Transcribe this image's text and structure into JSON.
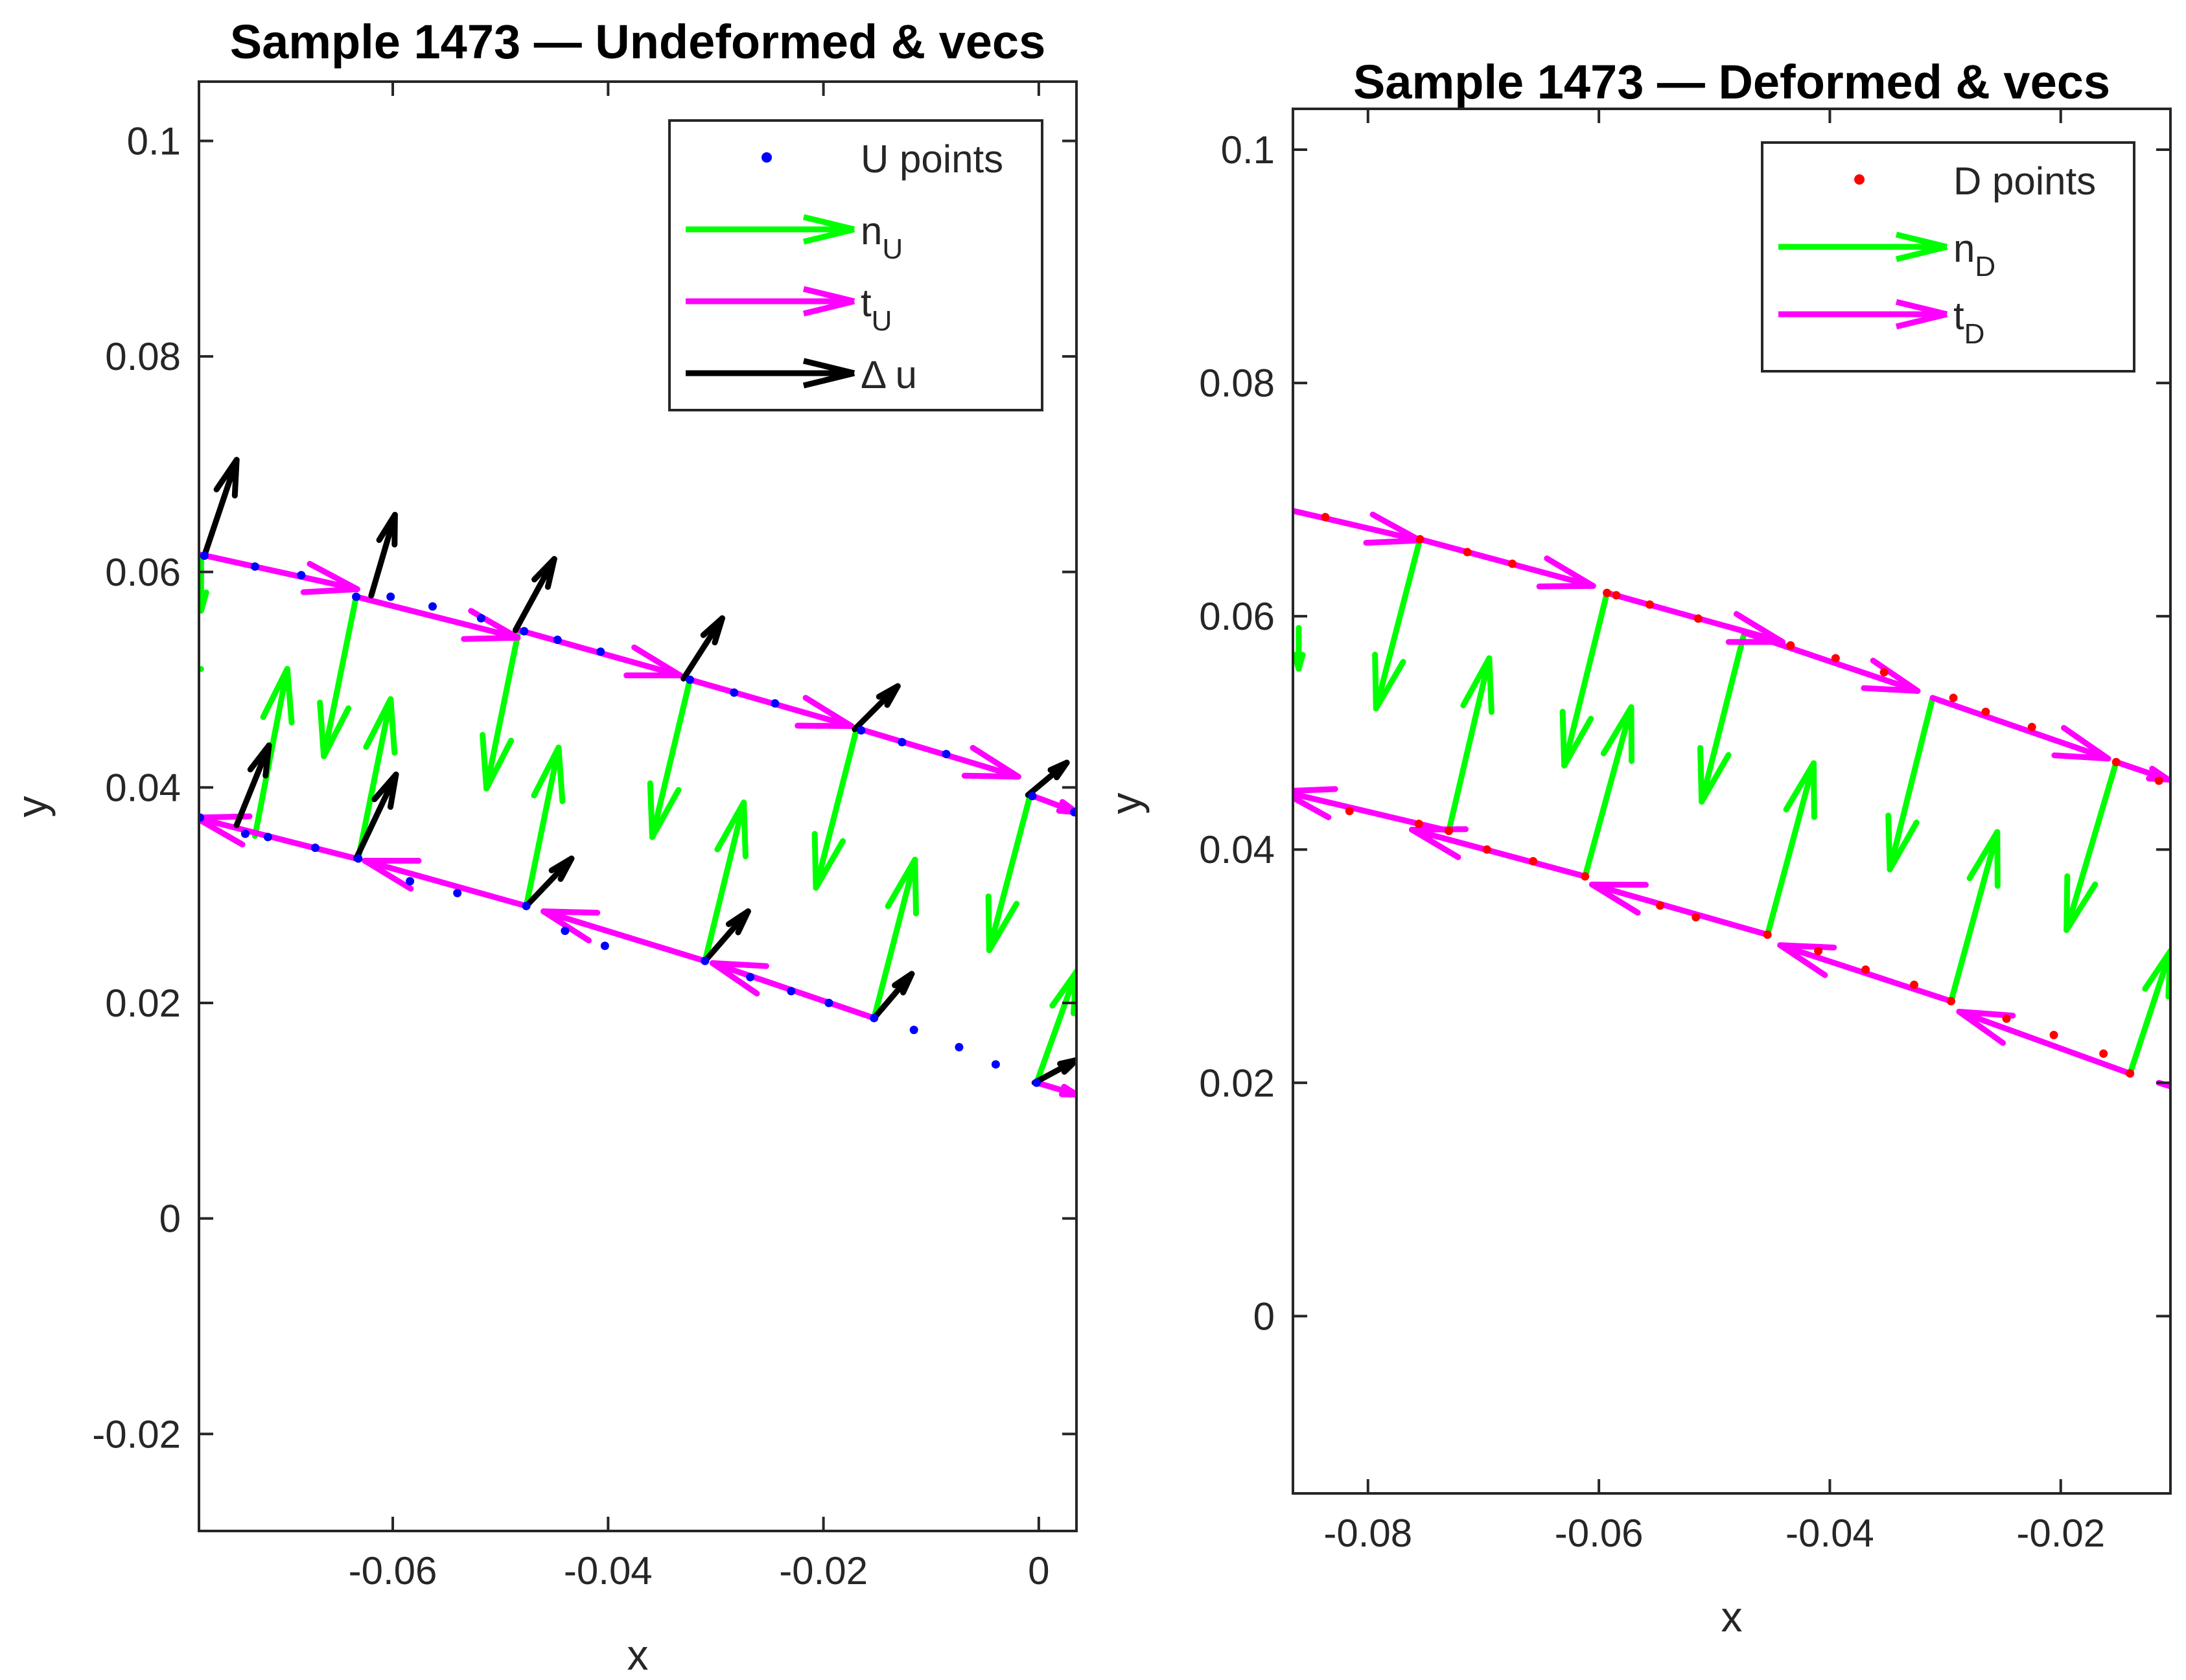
{
  "chart_data": [
    {
      "type": "quiver",
      "title": "Sample 1473 — Undeformed & vecs",
      "xlabel": "x",
      "ylabel": "y",
      "xlim": [
        -0.078,
        0.0035
      ],
      "ylim": [
        -0.029,
        0.1055
      ],
      "xticks": [
        -0.06,
        -0.04,
        -0.02,
        0
      ],
      "yticks": [
        -0.02,
        0,
        0.02,
        0.04,
        0.06,
        0.08,
        0.1
      ],
      "xtick_labels": [
        "-0.06",
        "-0.04",
        "-0.02",
        "0"
      ],
      "ytick_labels": [
        "-0.02",
        "0",
        "0.02",
        "0.04",
        "0.06",
        "0.08",
        "0.1"
      ],
      "legend": [
        {
          "kind": "points",
          "label": "U points",
          "sub": "",
          "color": "#0000ff"
        },
        {
          "kind": "arrow",
          "label": "n",
          "sub": "U",
          "color": "#00ff00"
        },
        {
          "kind": "arrow",
          "label": "t",
          "sub": "U",
          "color": "#ff00ff"
        },
        {
          "kind": "arrow",
          "label": "Δ u",
          "sub": "",
          "color": "#000000"
        }
      ],
      "points_color": "#0000ff",
      "points": [
        [
          -0.0775,
          0.0615
        ],
        [
          -0.0728,
          0.0605
        ],
        [
          -0.0685,
          0.0597
        ],
        [
          -0.0634,
          0.0577
        ],
        [
          -0.0602,
          0.0577
        ],
        [
          -0.0563,
          0.0568
        ],
        [
          -0.0518,
          0.0557
        ],
        [
          -0.0478,
          0.0545
        ],
        [
          -0.0447,
          0.0537
        ],
        [
          -0.0407,
          0.0526
        ],
        [
          -0.0324,
          0.05
        ],
        [
          -0.0283,
          0.0488
        ],
        [
          -0.0245,
          0.0478
        ],
        [
          -0.0165,
          0.0453
        ],
        [
          -0.0127,
          0.0442
        ],
        [
          -0.0086,
          0.0431
        ],
        [
          -0.0006,
          0.0392
        ],
        [
          0.0033,
          0.0377
        ],
        [
          -0.0779,
          0.0372
        ],
        [
          -0.0737,
          0.0357
        ],
        [
          -0.0716,
          0.0354
        ],
        [
          -0.0672,
          0.0344
        ],
        [
          -0.0632,
          0.0334
        ],
        [
          -0.0584,
          0.0313
        ],
        [
          -0.054,
          0.0302
        ],
        [
          -0.0476,
          0.029
        ],
        [
          -0.044,
          0.0267
        ],
        [
          -0.0403,
          0.0253
        ],
        [
          -0.031,
          0.0239
        ],
        [
          -0.0268,
          0.0224
        ],
        [
          -0.023,
          0.0211
        ],
        [
          -0.0195,
          0.02
        ],
        [
          -0.0153,
          0.0186
        ],
        [
          -0.0116,
          0.0175
        ],
        [
          -0.0074,
          0.0159
        ],
        [
          -0.004,
          0.0143
        ],
        [
          -0.0002,
          0.0126
        ]
      ],
      "series": [
        {
          "name": "n_U",
          "color": "#00ff00",
          "arrows": [
            [
              -0.0778,
              0.0614,
              0.0,
              -0.005
            ],
            [
              -0.0778,
              0.051,
              0.0,
              0.0
            ],
            [
              -0.0728,
              0.0355,
              0.003,
              0.0155
            ],
            [
              -0.0634,
              0.0577,
              -0.003,
              -0.0148
            ],
            [
              -0.0632,
              0.0334,
              0.003,
              0.0148
            ],
            [
              -0.0483,
              0.0546,
              -0.003,
              -0.0147
            ],
            [
              -0.0476,
              0.029,
              0.003,
              0.0147
            ],
            [
              -0.0324,
              0.05,
              -0.0035,
              -0.0146
            ],
            [
              -0.031,
              0.0239,
              0.0036,
              0.0147
            ],
            [
              -0.0169,
              0.0455,
              -0.0038,
              -0.0148
            ],
            [
              -0.0153,
              0.0186,
              0.0038,
              0.0147
            ],
            [
              -0.0008,
              0.0393,
              -0.0038,
              -0.0144
            ],
            [
              -0.0002,
              0.0126,
              0.0037,
              0.0103
            ]
          ]
        },
        {
          "name": "t_U",
          "color": "#ff00ff",
          "arrows": [
            [
              -0.0778,
              0.0616,
              0.0145,
              -0.0032
            ],
            [
              -0.0634,
              0.0577,
              0.015,
              -0.0038
            ],
            [
              -0.0483,
              0.0546,
              0.015,
              -0.0042
            ],
            [
              -0.0324,
              0.05,
              0.015,
              -0.0043
            ],
            [
              -0.0169,
              0.0455,
              0.015,
              -0.0045
            ],
            [
              -0.0008,
              0.0393,
              0.0043,
              -0.0016
            ],
            [
              -0.0779,
              0.0372,
              0.0,
              0.0
            ],
            [
              -0.0634,
              0.0334,
              -0.0149,
              0.0038
            ],
            [
              -0.0476,
              0.029,
              -0.015,
              0.0042
            ],
            [
              -0.031,
              0.0239,
              -0.015,
              0.0046
            ],
            [
              -0.0153,
              0.0186,
              -0.015,
              0.0051
            ],
            [
              -0.0002,
              0.0126,
              0.0037,
              -0.0011
            ]
          ]
        },
        {
          "name": "Δ u",
          "color": "#000000",
          "arrows": [
            [
              -0.0775,
              0.0615,
              0.003,
              0.0089
            ],
            [
              -0.0745,
              0.0365,
              0.003,
              0.0074
            ],
            [
              -0.062,
              0.0578,
              0.0022,
              0.0075
            ],
            [
              -0.0634,
              0.0334,
              0.0037,
              0.0078
            ],
            [
              -0.0486,
              0.0546,
              0.0036,
              0.0066
            ],
            [
              -0.0476,
              0.029,
              0.0042,
              0.0044
            ],
            [
              -0.033,
              0.0501,
              0.0036,
              0.0056
            ],
            [
              -0.031,
              0.0239,
              0.004,
              0.0046
            ],
            [
              -0.0171,
              0.0454,
              0.004,
              0.004
            ],
            [
              -0.0153,
              0.0186,
              0.0035,
              0.0041
            ],
            [
              -0.001,
              0.0393,
              0.0036,
              0.003
            ],
            [
              -0.0004,
              0.0126,
              0.0039,
              0.0021
            ]
          ]
        }
      ]
    },
    {
      "type": "quiver",
      "title": "Sample 1473 — Deformed & vecs",
      "xlabel": "x",
      "ylabel": "y",
      "xlim": [
        -0.0865,
        -0.0105
      ],
      "ylim": [
        -0.0152,
        0.1035
      ],
      "xticks": [
        -0.08,
        -0.06,
        -0.04,
        -0.02
      ],
      "yticks": [
        0,
        0.02,
        0.04,
        0.06,
        0.08,
        0.1
      ],
      "xtick_labels": [
        "-0.08",
        "-0.06",
        "-0.04",
        "-0.02"
      ],
      "ytick_labels": [
        "0",
        "0.02",
        "0.04",
        "0.06",
        "0.08",
        "0.1"
      ],
      "legend": [
        {
          "kind": "points",
          "label": "D points",
          "sub": "",
          "color": "#ff0000"
        },
        {
          "kind": "arrow",
          "label": "n",
          "sub": "D",
          "color": "#00ff00"
        },
        {
          "kind": "arrow",
          "label": "t",
          "sub": "D",
          "color": "#ff00ff"
        }
      ],
      "points_color": "#ff0000",
      "points": [
        [
          -0.0837,
          0.0685
        ],
        [
          -0.0755,
          0.0666
        ],
        [
          -0.0714,
          0.0655
        ],
        [
          -0.0675,
          0.0645
        ],
        [
          -0.0593,
          0.062
        ],
        [
          -0.0585,
          0.0618
        ],
        [
          -0.0556,
          0.061
        ],
        [
          -0.0514,
          0.0598
        ],
        [
          -0.0434,
          0.0575
        ],
        [
          -0.0395,
          0.0564
        ],
        [
          -0.0353,
          0.0552
        ],
        [
          -0.0293,
          0.053
        ],
        [
          -0.0265,
          0.0518
        ],
        [
          -0.0225,
          0.0505
        ],
        [
          -0.0152,
          0.0475
        ],
        [
          -0.0115,
          0.0459
        ],
        [
          -0.0816,
          0.0433
        ],
        [
          -0.0756,
          0.0422
        ],
        [
          -0.073,
          0.0416
        ],
        [
          -0.0697,
          0.04
        ],
        [
          -0.0657,
          0.039
        ],
        [
          -0.0612,
          0.0377
        ],
        [
          -0.0547,
          0.0352
        ],
        [
          -0.0516,
          0.0342
        ],
        [
          -0.0454,
          0.0327
        ],
        [
          -0.041,
          0.0313
        ],
        [
          -0.0369,
          0.0297
        ],
        [
          -0.0327,
          0.0284
        ],
        [
          -0.0295,
          0.027
        ],
        [
          -0.0247,
          0.0255
        ],
        [
          -0.0206,
          0.0241
        ],
        [
          -0.0163,
          0.0225
        ],
        [
          -0.014,
          0.0208
        ]
      ],
      "series": [
        {
          "name": "n_D",
          "color": "#00ff00",
          "arrows": [
            [
              -0.086,
              0.059,
              0.0,
              -0.0035
            ],
            [
              -0.0755,
              0.0666,
              -0.0038,
              -0.0145
            ],
            [
              -0.073,
              0.0416,
              0.0035,
              0.0148
            ],
            [
              -0.0593,
              0.062,
              -0.0037,
              -0.0148
            ],
            [
              -0.0612,
              0.0377,
              0.004,
              0.0145
            ],
            [
              -0.0474,
              0.0586,
              -0.0037,
              -0.0145
            ],
            [
              -0.0454,
              0.0327,
              0.004,
              0.0147
            ],
            [
              -0.0311,
              0.053,
              -0.0037,
              -0.0147
            ],
            [
              -0.0295,
              0.027,
              0.004,
              0.0145
            ],
            [
              -0.0152,
              0.0475,
              -0.0043,
              -0.0144
            ],
            [
              -0.014,
              0.0208,
              0.0035,
              0.0105
            ]
          ]
        },
        {
          "name": "t_D",
          "color": "#ff00ff",
          "arrows": [
            [
              -0.0885,
              0.0695,
              0.013,
              -0.003
            ],
            [
              -0.0755,
              0.0666,
              0.015,
              -0.004
            ],
            [
              -0.0593,
              0.062,
              0.0152,
              -0.0042
            ],
            [
              -0.0474,
              0.0586,
              0.015,
              -0.005
            ],
            [
              -0.0311,
              0.053,
              0.0152,
              -0.0052
            ],
            [
              -0.0152,
              0.0475,
              0.0045,
              -0.0015
            ],
            [
              -0.073,
              0.0416,
              -0.0145,
              0.0034
            ],
            [
              -0.0612,
              0.0377,
              -0.015,
              0.004
            ],
            [
              -0.0454,
              0.0327,
              -0.0152,
              0.0043
            ],
            [
              -0.0295,
              0.027,
              -0.0148,
              0.0048
            ],
            [
              -0.014,
              0.0208,
              -0.0148,
              0.0053
            ],
            [
              -0.0105,
              0.0197,
              -0.001,
              0.0003
            ]
          ]
        }
      ]
    }
  ]
}
